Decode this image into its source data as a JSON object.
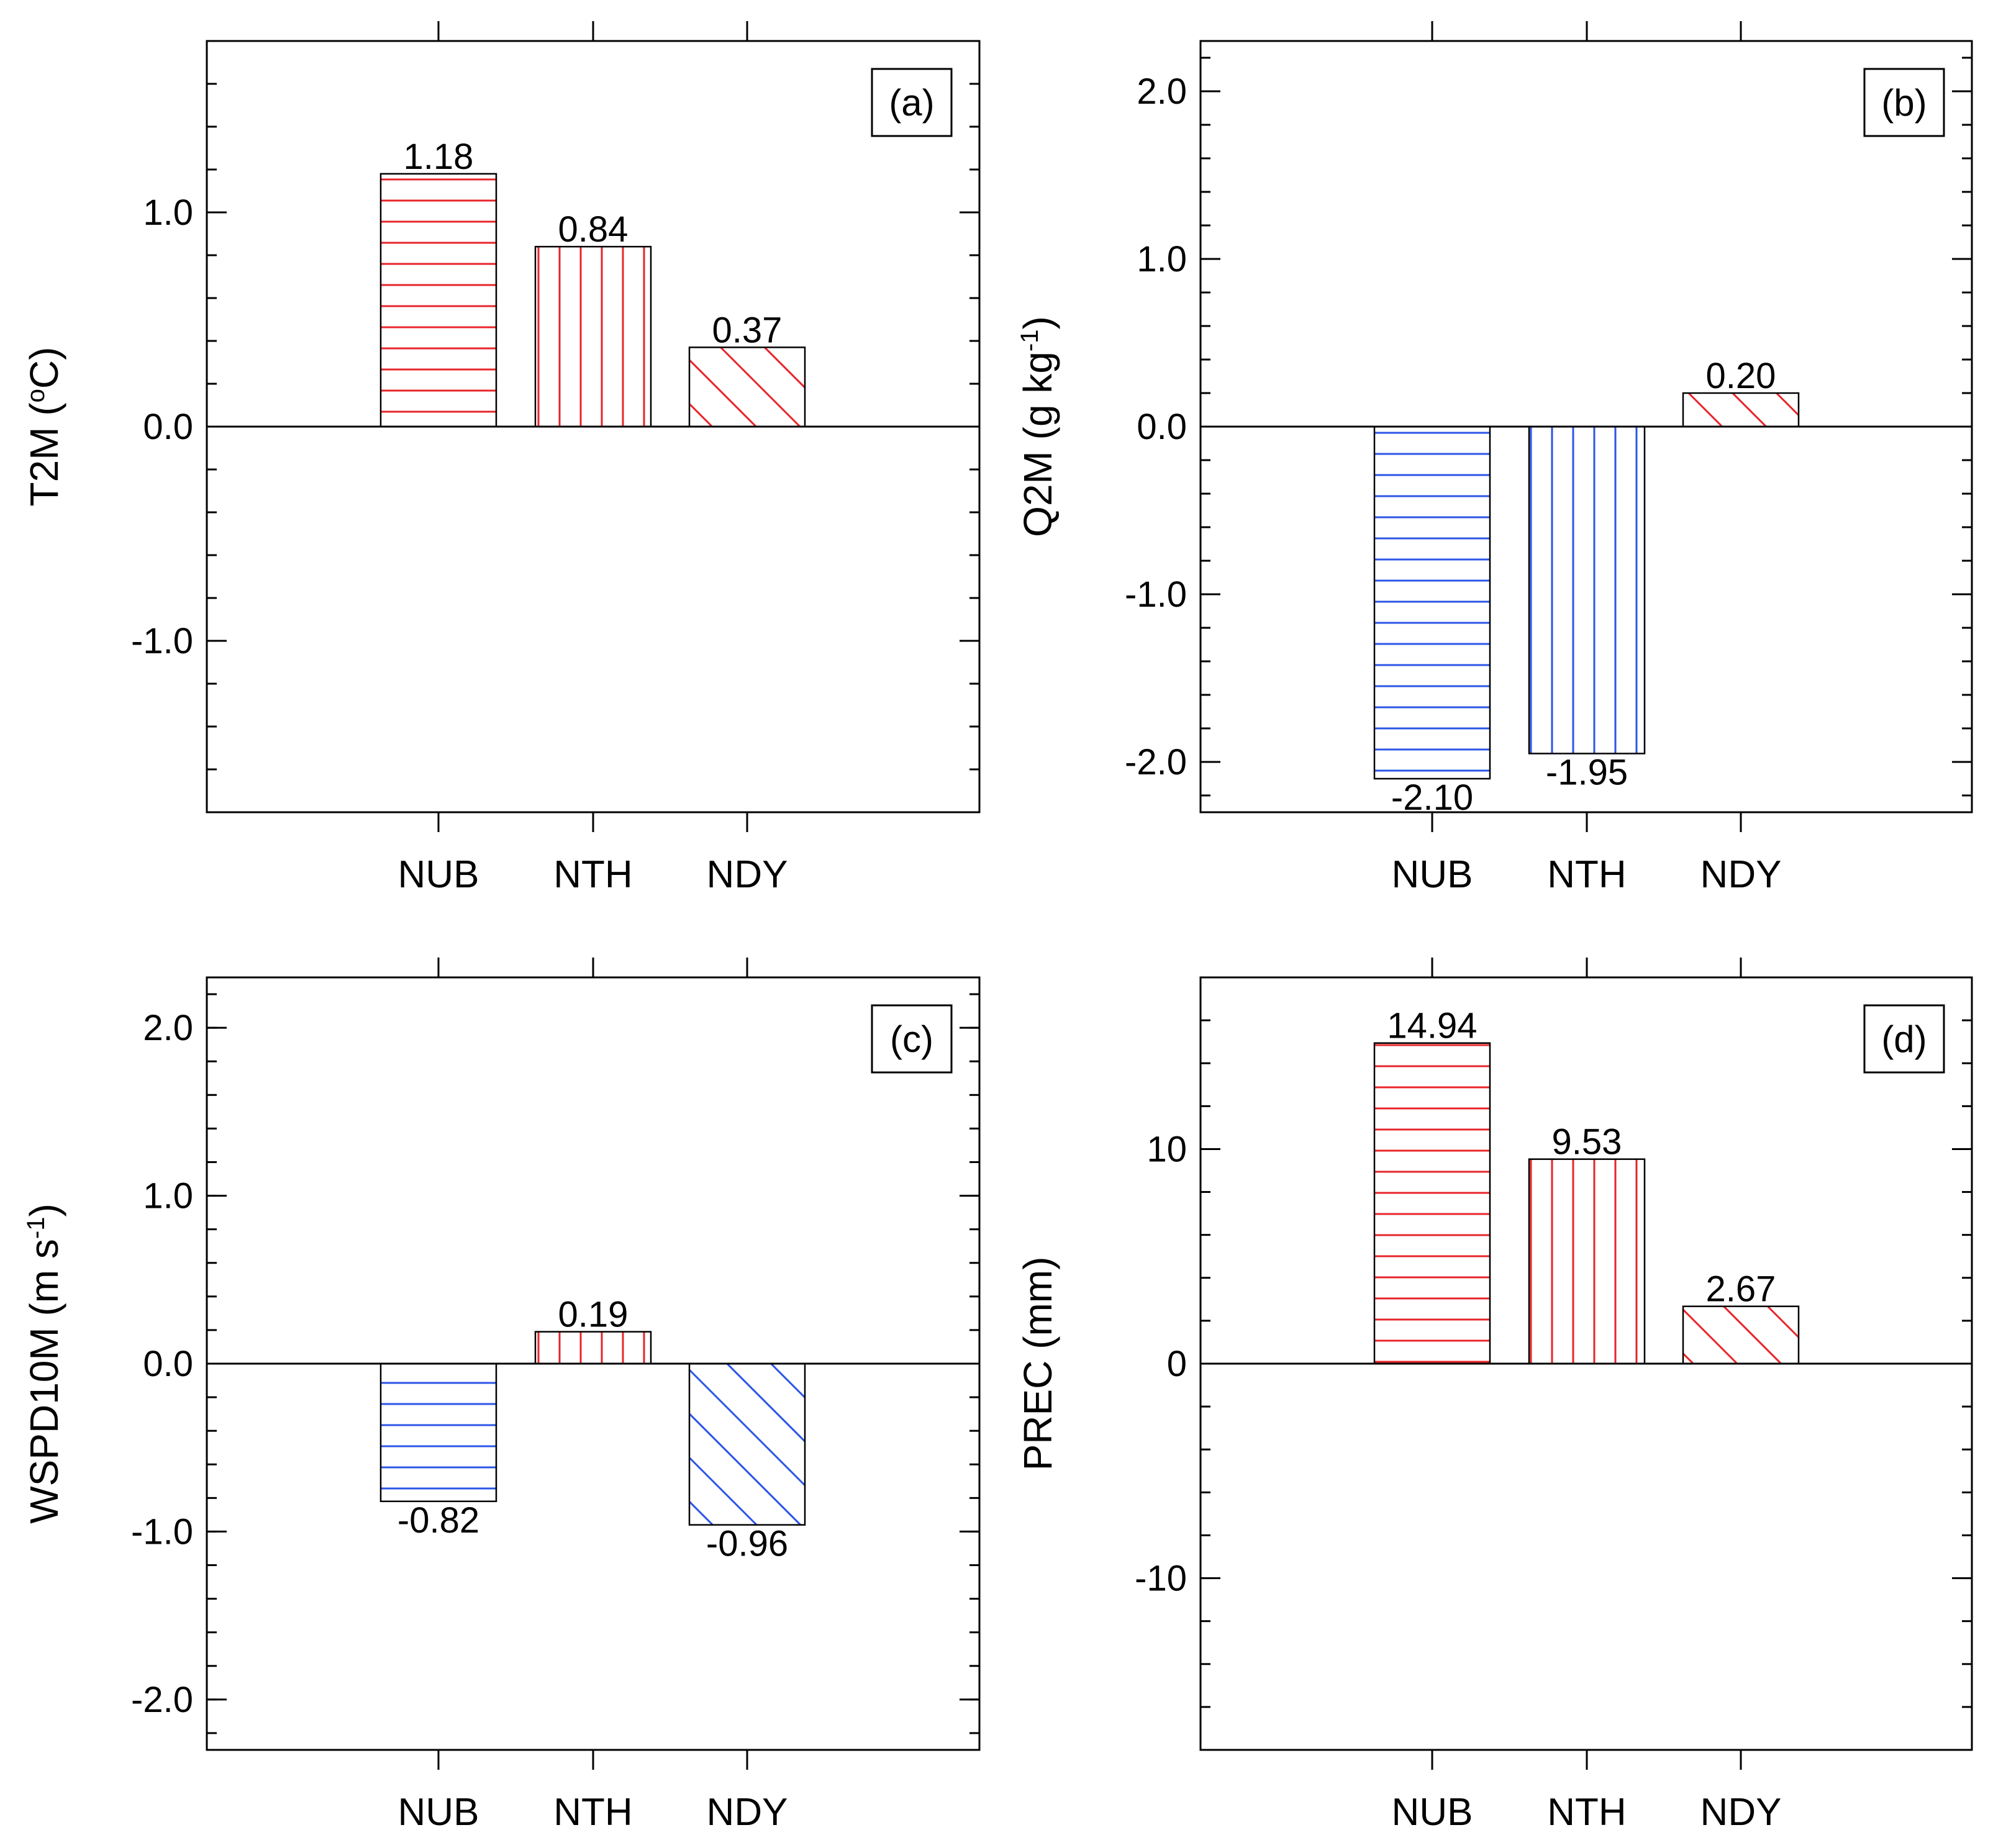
{
  "figure": {
    "colors": {
      "positive": "#e8242a",
      "negative": "#2b55e6"
    },
    "categories": [
      "NUB",
      "NTH",
      "NDY"
    ],
    "patterns": [
      "horizontal",
      "vertical",
      "diagonal"
    ]
  },
  "chart_data": [
    {
      "type": "bar",
      "panel_label": "(a)",
      "ylabel_text": "T2M (",
      "ylabel_sup": "o",
      "ylabel_after": "C)",
      "categories": [
        "NUB",
        "NTH",
        "NDY"
      ],
      "values": [
        1.18,
        0.84,
        0.37
      ],
      "value_labels": [
        "1.18",
        "0.84",
        "0.37"
      ],
      "ylim": [
        -1.8,
        1.8
      ],
      "yticks": [
        1.0,
        0.0,
        -1.0
      ],
      "ytick_labels": [
        "1.0",
        "0.0",
        "-1.0"
      ],
      "minor_step": 0.2
    },
    {
      "type": "bar",
      "panel_label": "(b)",
      "ylabel_text": "Q2M (g kg",
      "ylabel_sup": "-1",
      "ylabel_after": ")",
      "categories": [
        "NUB",
        "NTH",
        "NDY"
      ],
      "values": [
        -2.1,
        -1.95,
        0.2
      ],
      "value_labels": [
        "-2.10",
        "-1.95",
        "0.20"
      ],
      "ylim": [
        -2.3,
        2.3
      ],
      "yticks": [
        2.0,
        1.0,
        0.0,
        -1.0,
        -2.0
      ],
      "ytick_labels": [
        "2.0",
        "1.0",
        "0.0",
        "-1.0",
        "-2.0"
      ],
      "minor_step": 0.2
    },
    {
      "type": "bar",
      "panel_label": "(c)",
      "ylabel_text": "WSPD10M (m s",
      "ylabel_sup": "-1",
      "ylabel_after": ")",
      "categories": [
        "NUB",
        "NTH",
        "NDY"
      ],
      "values": [
        -0.82,
        0.19,
        -0.96
      ],
      "value_labels": [
        "-0.82",
        "0.19",
        "-0.96"
      ],
      "ylim": [
        -2.3,
        2.3
      ],
      "yticks": [
        2.0,
        1.0,
        0.0,
        -1.0,
        -2.0
      ],
      "ytick_labels": [
        "2.0",
        "1.0",
        "0.0",
        "-1.0",
        "-2.0"
      ],
      "minor_step": 0.2
    },
    {
      "type": "bar",
      "panel_label": "(d)",
      "ylabel_text": "PREC (mm)",
      "ylabel_sup": "",
      "ylabel_after": "",
      "categories": [
        "NUB",
        "NTH",
        "NDY"
      ],
      "values": [
        14.94,
        9.53,
        2.67
      ],
      "value_labels": [
        "14.94",
        "9.53",
        "2.67"
      ],
      "ylim": [
        -18,
        18
      ],
      "yticks": [
        10,
        0,
        -10
      ],
      "ytick_labels": [
        "10",
        "0",
        "-10"
      ],
      "minor_step": 2
    }
  ]
}
